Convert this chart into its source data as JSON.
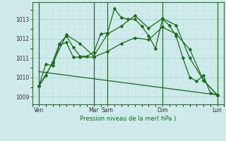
{
  "background_color": "#ceeaea",
  "grid_color_major": "#b0d8d8",
  "grid_color_minor": "#c4e8e8",
  "line_color": "#1a6b1a",
  "ylabel": "Pression niveau de la mer( hPa )",
  "ylim": [
    1008.6,
    1013.9
  ],
  "yticks": [
    1009,
    1010,
    1011,
    1012,
    1013
  ],
  "xlim": [
    -0.5,
    13.5
  ],
  "xtick_labels": [
    "Ven",
    "Mar",
    "Sam",
    "Dim",
    "Lun"
  ],
  "xtick_positions": [
    0,
    4,
    5,
    9,
    13
  ],
  "vline_positions": [
    0,
    4,
    5,
    9,
    13
  ],
  "series1_x": [
    0,
    0.5,
    1,
    1.5,
    2,
    2.5,
    3,
    3.5,
    4,
    4.5,
    5,
    5.5,
    6,
    6.5,
    7,
    7.5,
    8,
    8.5,
    9,
    9.5,
    10,
    10.5,
    11,
    11.5,
    12,
    12.5,
    13
  ],
  "series1_y": [
    1009.55,
    1010.1,
    1010.8,
    1011.75,
    1012.15,
    1011.55,
    1011.1,
    1011.1,
    1011.3,
    1012.25,
    1012.3,
    1013.55,
    1013.1,
    1013.0,
    1013.0,
    1012.65,
    1012.15,
    1011.5,
    1013.0,
    1012.7,
    1012.15,
    1011.0,
    1010.0,
    1009.8,
    1010.1,
    1009.2,
    1009.1
  ],
  "series2_x": [
    0,
    0.5,
    1,
    1.5,
    2,
    2.5,
    3,
    4,
    5,
    6,
    7,
    8,
    9,
    10,
    11,
    12,
    13
  ],
  "series2_y": [
    1009.55,
    1010.7,
    1010.6,
    1011.7,
    1011.8,
    1011.05,
    1011.05,
    1011.05,
    1011.35,
    1011.75,
    1012.05,
    1011.95,
    1012.6,
    1012.25,
    1011.45,
    1009.85,
    1009.1
  ],
  "series3_x": [
    0,
    1,
    2,
    3,
    4,
    5,
    6,
    7,
    8,
    9,
    10,
    11,
    12,
    13
  ],
  "series3_y": [
    1009.55,
    1010.75,
    1012.2,
    1011.75,
    1011.1,
    1012.25,
    1012.65,
    1013.2,
    1012.55,
    1013.05,
    1012.7,
    1011.0,
    1009.85,
    1009.1
  ],
  "series4_x": [
    0,
    13
  ],
  "series4_y": [
    1010.3,
    1009.1
  ]
}
